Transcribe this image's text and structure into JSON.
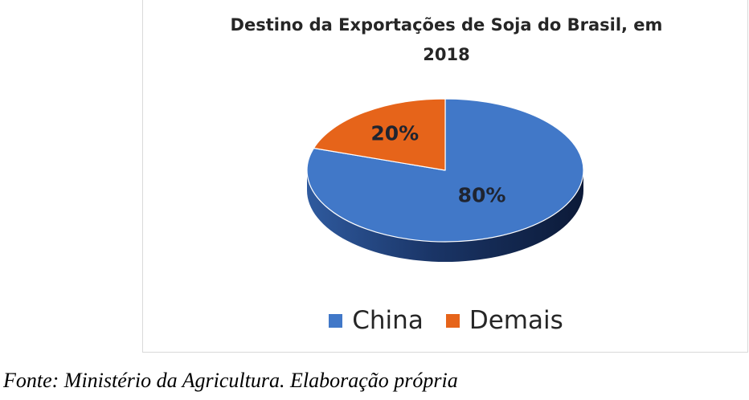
{
  "chart_data": {
    "type": "pie",
    "title": "Destino da Exportações de Soja do Brasil, em 2018",
    "style": "3d",
    "legend_position": "bottom",
    "slices": [
      {
        "label": "China",
        "value": 80,
        "display": "80%",
        "color": "#4178c8"
      },
      {
        "label": "Demais",
        "value": 20,
        "display": "20%",
        "color": "#e6641a"
      }
    ]
  },
  "caption": "Fonte: Ministério da Agricultura. Elaboração própria"
}
